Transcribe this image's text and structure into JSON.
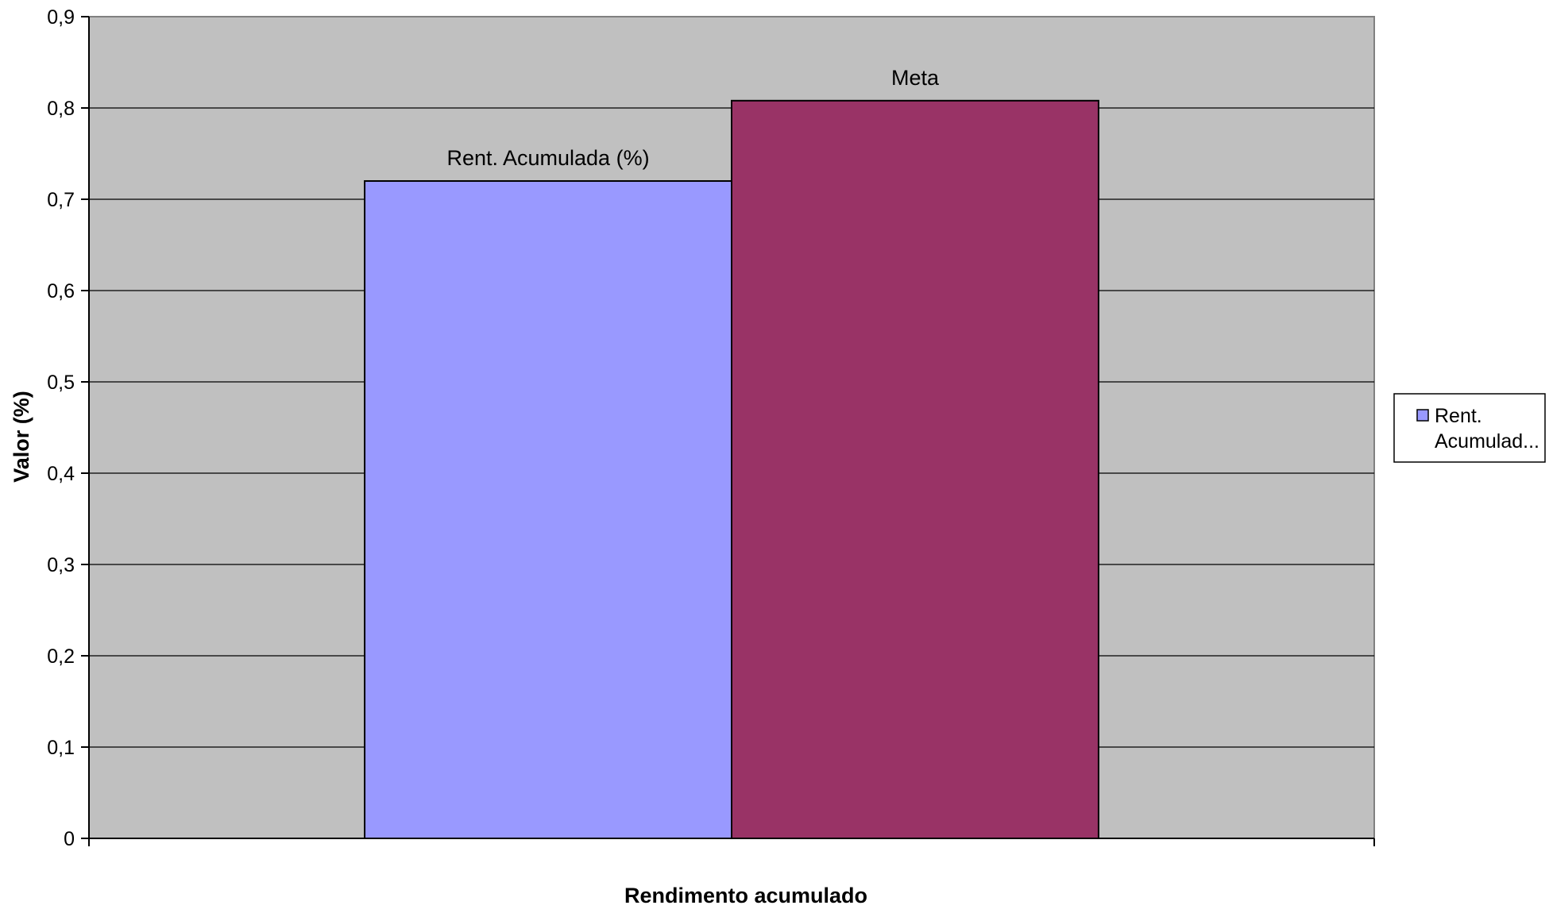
{
  "chart_data": {
    "type": "bar",
    "title": "",
    "xlabel": "Rendimento acumulado",
    "ylabel": "Valor (%)",
    "ylim": [
      0,
      0.9
    ],
    "yticks": [
      {
        "value": 0,
        "label": "0"
      },
      {
        "value": 0.1,
        "label": "0,1"
      },
      {
        "value": 0.2,
        "label": "0,2"
      },
      {
        "value": 0.3,
        "label": "0,3"
      },
      {
        "value": 0.4,
        "label": "0,4"
      },
      {
        "value": 0.5,
        "label": "0,5"
      },
      {
        "value": 0.6,
        "label": "0,6"
      },
      {
        "value": 0.7,
        "label": "0,7"
      },
      {
        "value": 0.8,
        "label": "0,8"
      },
      {
        "value": 0.9,
        "label": "0,9"
      }
    ],
    "grid": true,
    "legend_position": "right",
    "plot_background": "#c0c0c0",
    "bars": [
      {
        "label": "Rent. Acumulada (%)",
        "value": 0.72,
        "color": "#9999ff"
      },
      {
        "label": "Meta",
        "value": 0.808,
        "color": "#993366"
      }
    ],
    "legend": [
      {
        "line1": "Rent.",
        "line2": "Acumulad...",
        "color": "#9999ff"
      }
    ]
  }
}
